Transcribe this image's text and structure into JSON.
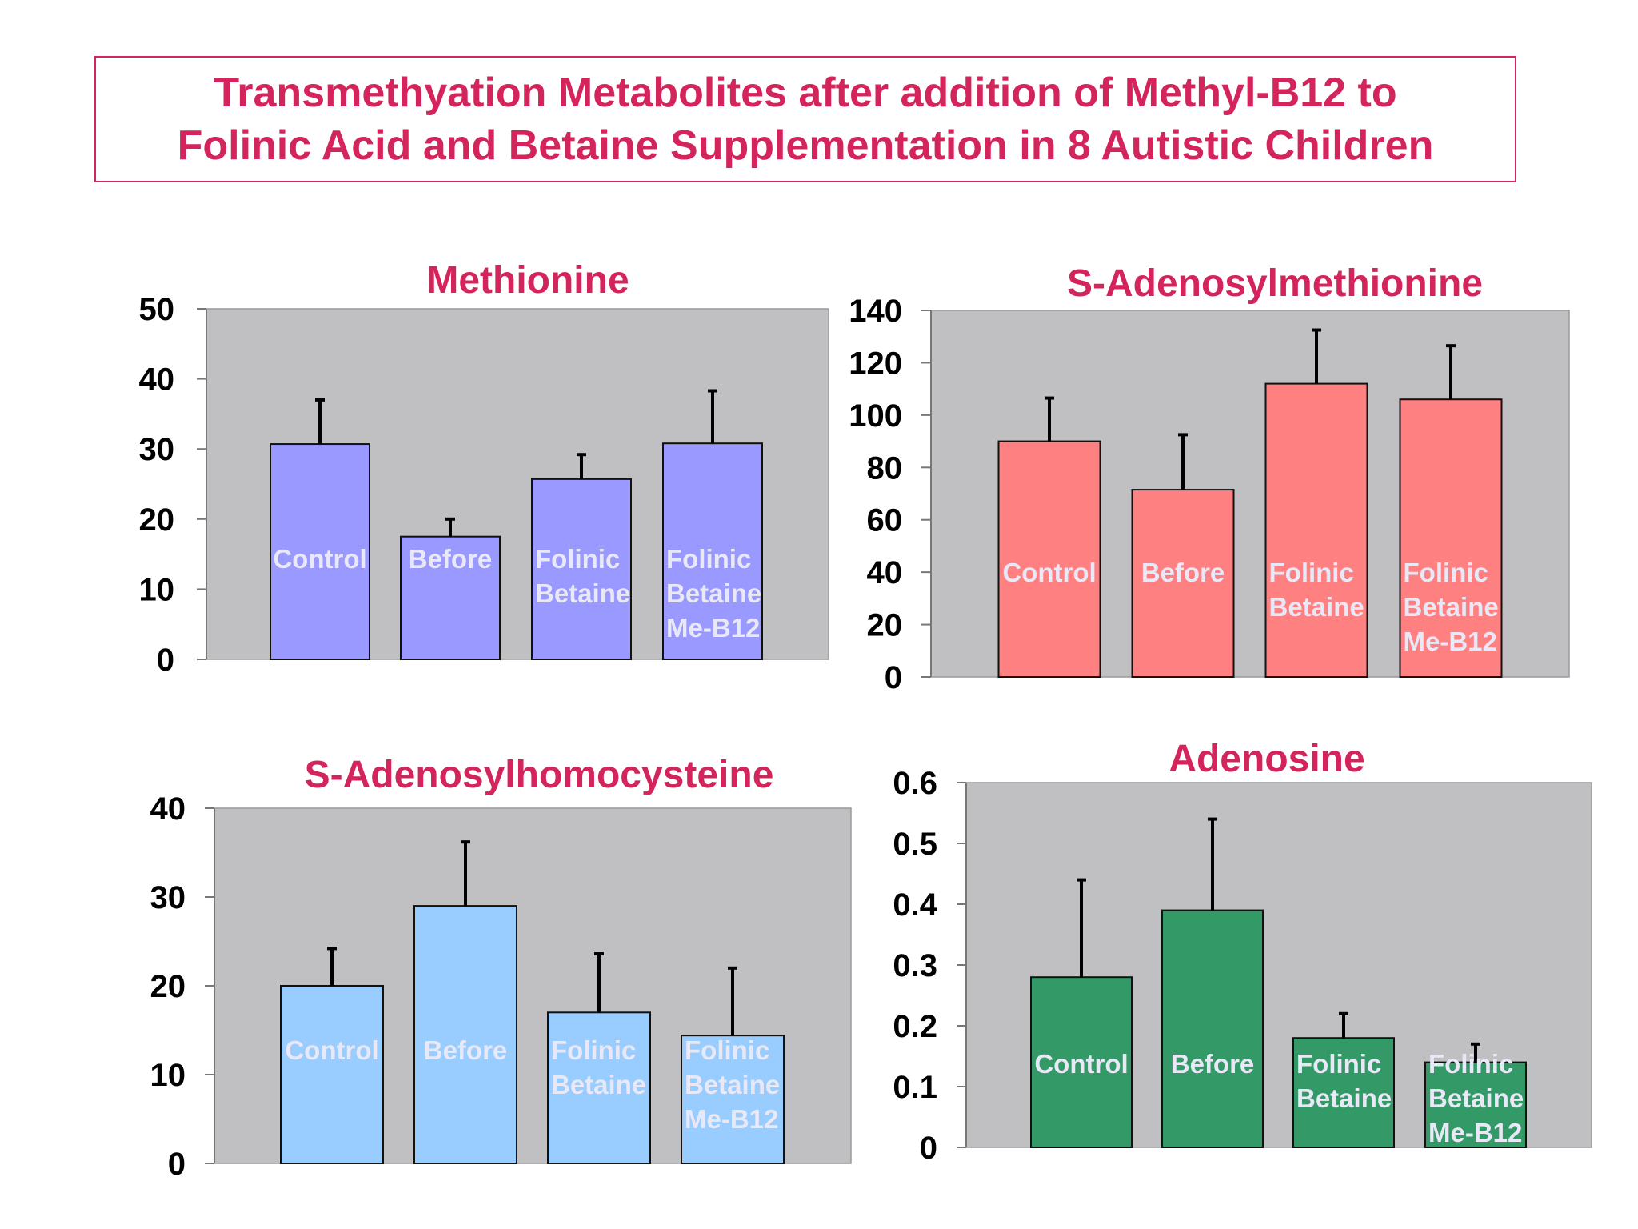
{
  "title": {
    "line1": "Transmethyation Metabolites after addition of Methyl-B12 to",
    "line2": "Folinic Acid and Betaine Supplementation in 8 Autistic Children"
  },
  "colors": {
    "title": "#d4245c",
    "plot_background": "#c0bfc1",
    "methionine": "#9999ff",
    "sam": "#ff8080",
    "sah": "#99ccff",
    "adenosine": "#339966"
  },
  "chart_data": [
    {
      "id": "methionine",
      "type": "bar",
      "title": "Methionine",
      "categories": [
        [
          "Control"
        ],
        [
          "Before"
        ],
        [
          "Folinic",
          "Betaine"
        ],
        [
          "Folinic",
          "Betaine",
          "Me-B12"
        ]
      ],
      "values": [
        30.7,
        17.5,
        25.7,
        30.8
      ],
      "error": [
        6.3,
        2.5,
        3.5,
        7.5
      ],
      "ylim": [
        0,
        50
      ],
      "yticks": [
        "0",
        "10",
        "20",
        "30",
        "40",
        "50"
      ],
      "xlabel": "",
      "ylabel": "",
      "grid": false,
      "bar_color": "#9999ff"
    },
    {
      "id": "sam",
      "type": "bar",
      "title": "S-Adenosylmethionine",
      "categories": [
        [
          "Control"
        ],
        [
          "Before"
        ],
        [
          "Folinic",
          "Betaine"
        ],
        [
          "Folinic",
          "Betaine",
          "Me-B12"
        ]
      ],
      "values": [
        90,
        71.5,
        112,
        106
      ],
      "error": [
        16.5,
        21,
        20.5,
        20.5
      ],
      "ylim": [
        0,
        140
      ],
      "yticks": [
        "0",
        "20",
        "40",
        "60",
        "80",
        "100",
        "120",
        "140"
      ],
      "xlabel": "",
      "ylabel": "",
      "grid": false,
      "bar_color": "#ff8080"
    },
    {
      "id": "sah",
      "type": "bar",
      "title": "S-Adenosylhomocysteine",
      "categories": [
        [
          "Control"
        ],
        [
          "Before"
        ],
        [
          "Folinic",
          "Betaine"
        ],
        [
          "Folinic",
          "Betaine",
          "Me-B12"
        ]
      ],
      "values": [
        20,
        29,
        17,
        14.4
      ],
      "error": [
        4.2,
        7.2,
        6.6,
        7.6
      ],
      "ylim": [
        0,
        40
      ],
      "yticks": [
        "0",
        "10",
        "20",
        "30",
        "40"
      ],
      "xlabel": "",
      "ylabel": "",
      "grid": false,
      "bar_color": "#99ccff"
    },
    {
      "id": "adenosine",
      "type": "bar",
      "title": "Adenosine",
      "categories": [
        [
          "Control"
        ],
        [
          "Before"
        ],
        [
          "Folinic",
          "Betaine"
        ],
        [
          "Folinic",
          "Betaine",
          "Me-B12"
        ]
      ],
      "values": [
        0.28,
        0.39,
        0.18,
        0.14
      ],
      "error": [
        0.16,
        0.15,
        0.04,
        0.03
      ],
      "ylim": [
        0,
        0.6
      ],
      "yticks": [
        "0",
        "0.1",
        "0.2",
        "0.3",
        "0.4",
        "0.5",
        "0.6"
      ],
      "xlabel": "",
      "ylabel": "",
      "grid": false,
      "bar_color": "#339966"
    }
  ]
}
